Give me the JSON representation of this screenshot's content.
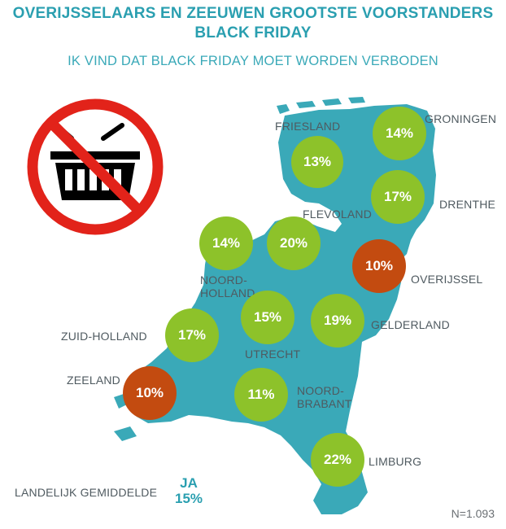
{
  "header": {
    "title_line1": "OVERIJSSELAARS EN ZEEUWEN GROOTSTE VOORSTANDERS",
    "title_line2": "BLACK FRIDAY",
    "subtitle": "IK VIND DAT BLACK FRIDAY MOET WORDEN VERBODEN"
  },
  "colors": {
    "map_fill": "#3aa9b8",
    "bubble_green": "#8dc22a",
    "bubble_orange": "#c34b10",
    "title": "#2a9fb0",
    "label": "#4f5a60"
  },
  "icon": {
    "name": "no-shopping-basket-icon"
  },
  "provinces": [
    {
      "key": "groningen",
      "label": "GRONINGEN",
      "value": "14%",
      "color": "green"
    },
    {
      "key": "friesland",
      "label": "FRIESLAND",
      "value": "13%",
      "color": "green"
    },
    {
      "key": "drenthe",
      "label": "DRENTHE",
      "value": "17%",
      "color": "green"
    },
    {
      "key": "flevoland",
      "label": "FLEVOLAND",
      "value": "20%",
      "color": "green"
    },
    {
      "key": "noord-holland",
      "label_line1": "NOORD-",
      "label_line2": "HOLLAND",
      "value": "14%",
      "color": "green"
    },
    {
      "key": "overijssel",
      "label": "OVERIJSSEL",
      "value": "10%",
      "color": "orange"
    },
    {
      "key": "utrecht",
      "label": "UTRECHT",
      "value": "15%",
      "color": "green"
    },
    {
      "key": "gelderland",
      "label": "GELDERLAND",
      "value": "19%",
      "color": "green"
    },
    {
      "key": "zuid-holland",
      "label": "ZUID-HOLLAND",
      "value": "17%",
      "color": "green"
    },
    {
      "key": "zeeland",
      "label": "ZEELAND",
      "value": "10%",
      "color": "orange"
    },
    {
      "key": "noord-brabant",
      "label_line1": "NOORD-",
      "label_line2": "BRABANT",
      "value": "11%",
      "color": "green"
    },
    {
      "key": "limburg",
      "label": "LIMBURG",
      "value": "22%",
      "color": "green"
    }
  ],
  "national": {
    "label": "LANDELIJK GEMIDDELDE",
    "answer": "JA",
    "value": "15%"
  },
  "sample": "N=1.093"
}
